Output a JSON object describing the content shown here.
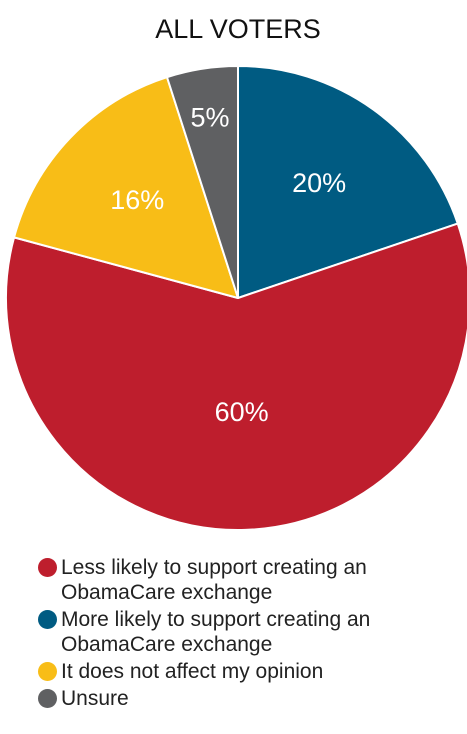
{
  "chart_data": {
    "type": "pie",
    "title": "ALL VOTERS",
    "slices": [
      {
        "name": "More likely to support creating an\nObamaCare exchange",
        "value": 20,
        "label": "20%",
        "color": "#005b82"
      },
      {
        "name": "Less likely to support creating an\nObamaCare exchange",
        "value": 60,
        "label": "60%",
        "color": "#be1e2d"
      },
      {
        "name": "It does not affect my opinion",
        "value": 16,
        "label": "16%",
        "color": "#f8bd17"
      },
      {
        "name": "Unsure",
        "value": 5,
        "label": "5%",
        "color": "#5f6062"
      }
    ],
    "legend": [
      {
        "name": "Less likely to support creating an\nObamaCare exchange",
        "color": "#be1e2d"
      },
      {
        "name": "More likely to support creating an\nObamaCare exchange",
        "color": "#005b82"
      },
      {
        "name": "It does not affect my opinion",
        "color": "#f8bd17"
      },
      {
        "name": "Unsure",
        "color": "#5f6062"
      }
    ],
    "legend_position": "bottom"
  }
}
